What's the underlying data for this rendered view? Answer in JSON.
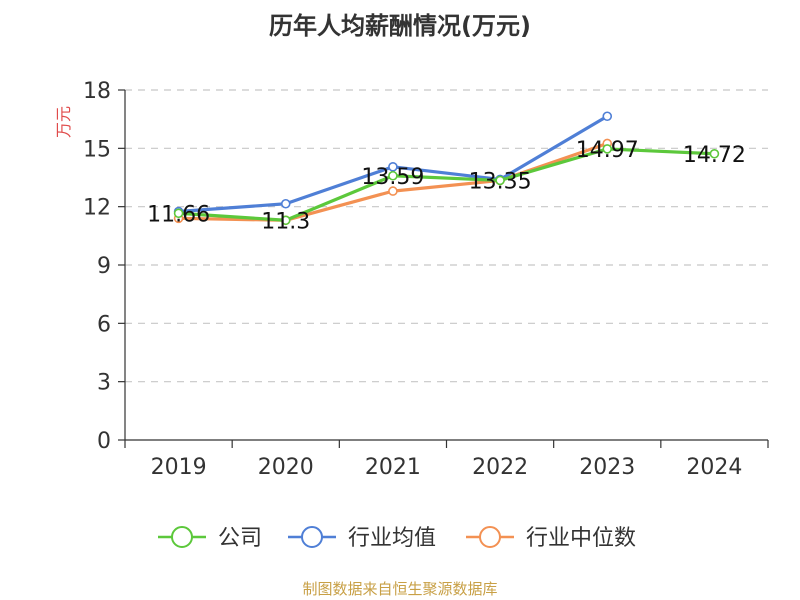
{
  "title": "历年人均薪酬情况(万元)",
  "source": "制图数据来自恒生聚源数据库",
  "chart_data": {
    "type": "line",
    "title": "历年人均薪酬情况(万元)",
    "ylabel": "万元",
    "xlabel": "",
    "categories": [
      "2019",
      "2020",
      "2021",
      "2022",
      "2023",
      "2024"
    ],
    "ylim": [
      0,
      18
    ],
    "yticks": [
      0,
      3,
      6,
      9,
      12,
      15,
      18
    ],
    "grid": true,
    "legend_position": "bottom",
    "series": [
      {
        "name": "公司",
        "color": "#5cc83b",
        "values": [
          11.66,
          11.3,
          13.59,
          13.35,
          14.97,
          14.72
        ],
        "labels": [
          "11.66",
          "11.3",
          "13.59",
          "13.35",
          "14.97",
          "14.72"
        ]
      },
      {
        "name": "行业均值",
        "color": "#4f7fd6",
        "values": [
          11.75,
          12.15,
          14.05,
          13.4,
          16.65,
          null
        ]
      },
      {
        "name": "行业中位数",
        "color": "#f39153",
        "values": [
          11.4,
          11.3,
          12.8,
          13.35,
          15.25,
          null
        ]
      }
    ]
  }
}
